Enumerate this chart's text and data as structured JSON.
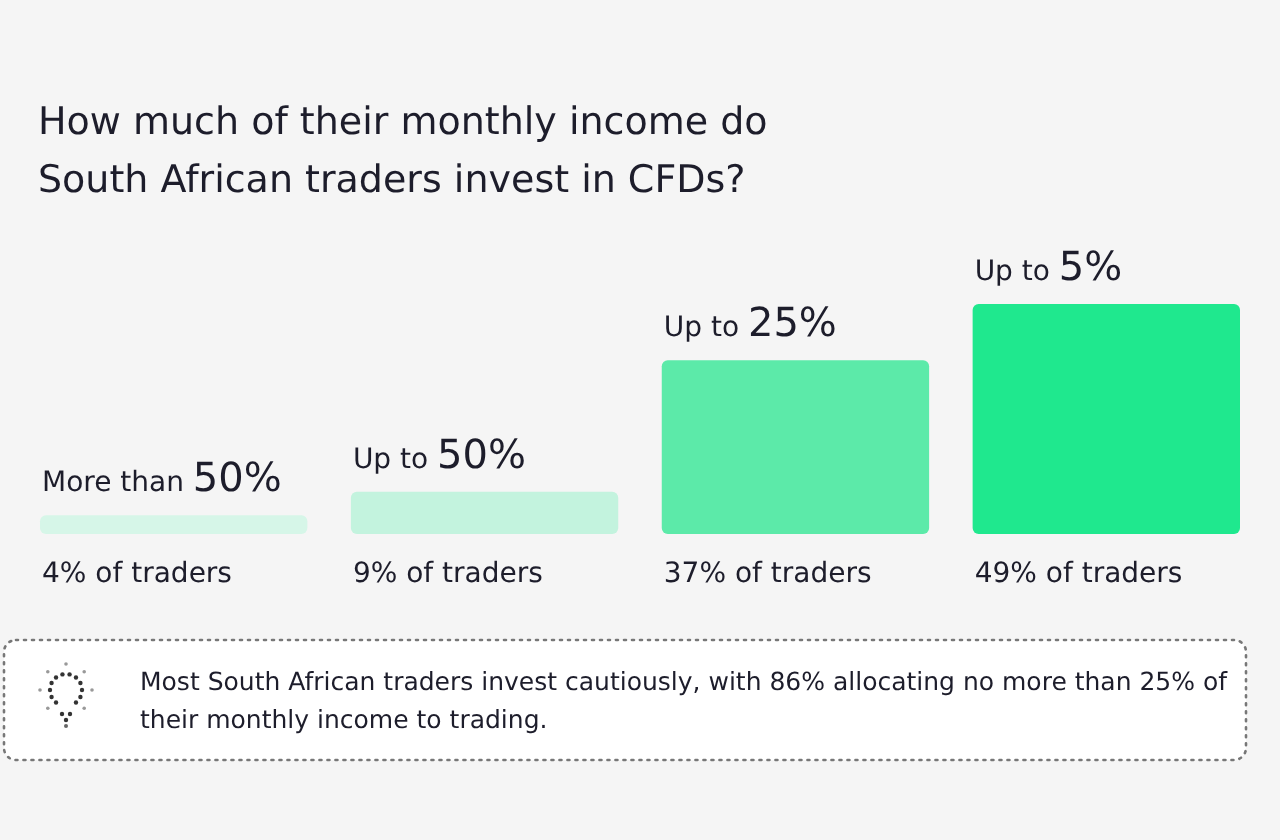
{
  "chart_data": {
    "type": "bar",
    "title": "How much of their monthly income do South African traders invest in CFDs?",
    "categories": [
      "More than 50%",
      "Up to 50%",
      "Up to 25%",
      "Up to 5%"
    ],
    "values": [
      4,
      9,
      37,
      49
    ],
    "colors": [
      "#d6f6e8",
      "#c3f3de",
      "#5ceaa9",
      "#1fe88e"
    ],
    "value_labels": [
      "4% of traders",
      "9% of traders",
      "37% of traders",
      "49% of traders"
    ],
    "annotations": [
      "Most South African traders invest cautiously, with 86% allocating no more than 25% of their monthly income to trading."
    ]
  }
}
